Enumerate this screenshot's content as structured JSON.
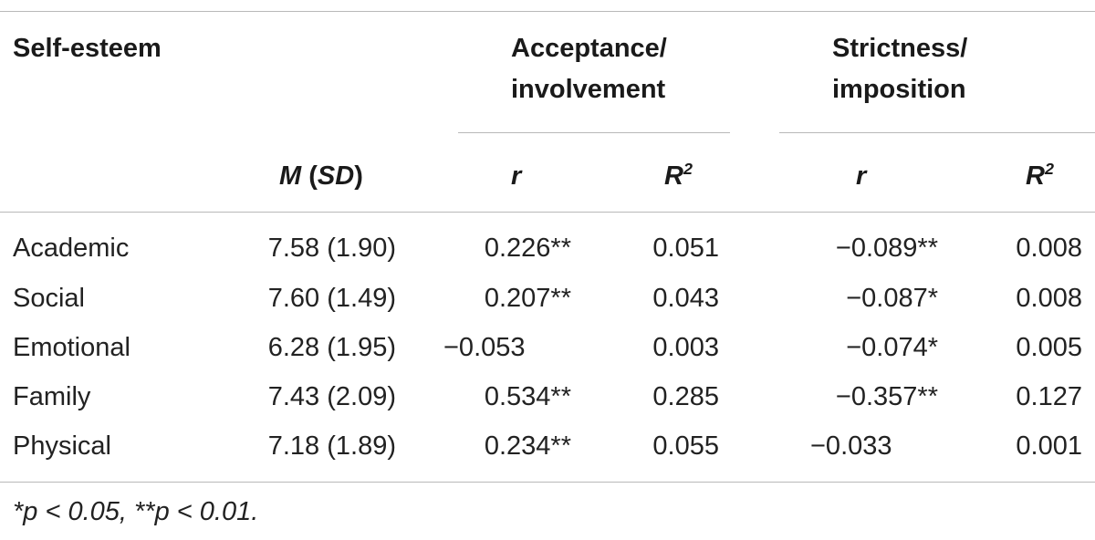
{
  "table": {
    "header": {
      "row_label": "Self-esteem",
      "group1_line1": "Acceptance/",
      "group1_line2": "involvement",
      "group2_line1": "Strictness/",
      "group2_line2": "imposition",
      "mean_label": "M",
      "sd_label": "SD",
      "r_label": "r",
      "r2_label": "R",
      "r2_sup": "2"
    },
    "rows": [
      {
        "label": "Academic",
        "msd": "7.58 (1.90)",
        "r1": "0.226**",
        "r2_1": "0.051",
        "r2": "−0.089**",
        "r2_2": "0.008"
      },
      {
        "label": "Social",
        "msd": "7.60 (1.49)",
        "r1": "0.207**",
        "r2_1": "0.043",
        "r2": "−0.087*",
        "r2_2": "0.008"
      },
      {
        "label": "Emotional",
        "msd": "6.28 (1.95)",
        "r1": "−0.053",
        "r2_1": "0.003",
        "r2": "−0.074*",
        "r2_2": "0.005"
      },
      {
        "label": "Family",
        "msd": "7.43 (2.09)",
        "r1": "0.534**",
        "r2_1": "0.285",
        "r2": "−0.357**",
        "r2_2": "0.127"
      },
      {
        "label": "Physical",
        "msd": "7.18 (1.89)",
        "r1": "0.234**",
        "r2_1": "0.055",
        "r2": "−0.033",
        "r2_2": "0.001"
      }
    ],
    "footnote": "*p < 0.05, **p < 0.01."
  }
}
